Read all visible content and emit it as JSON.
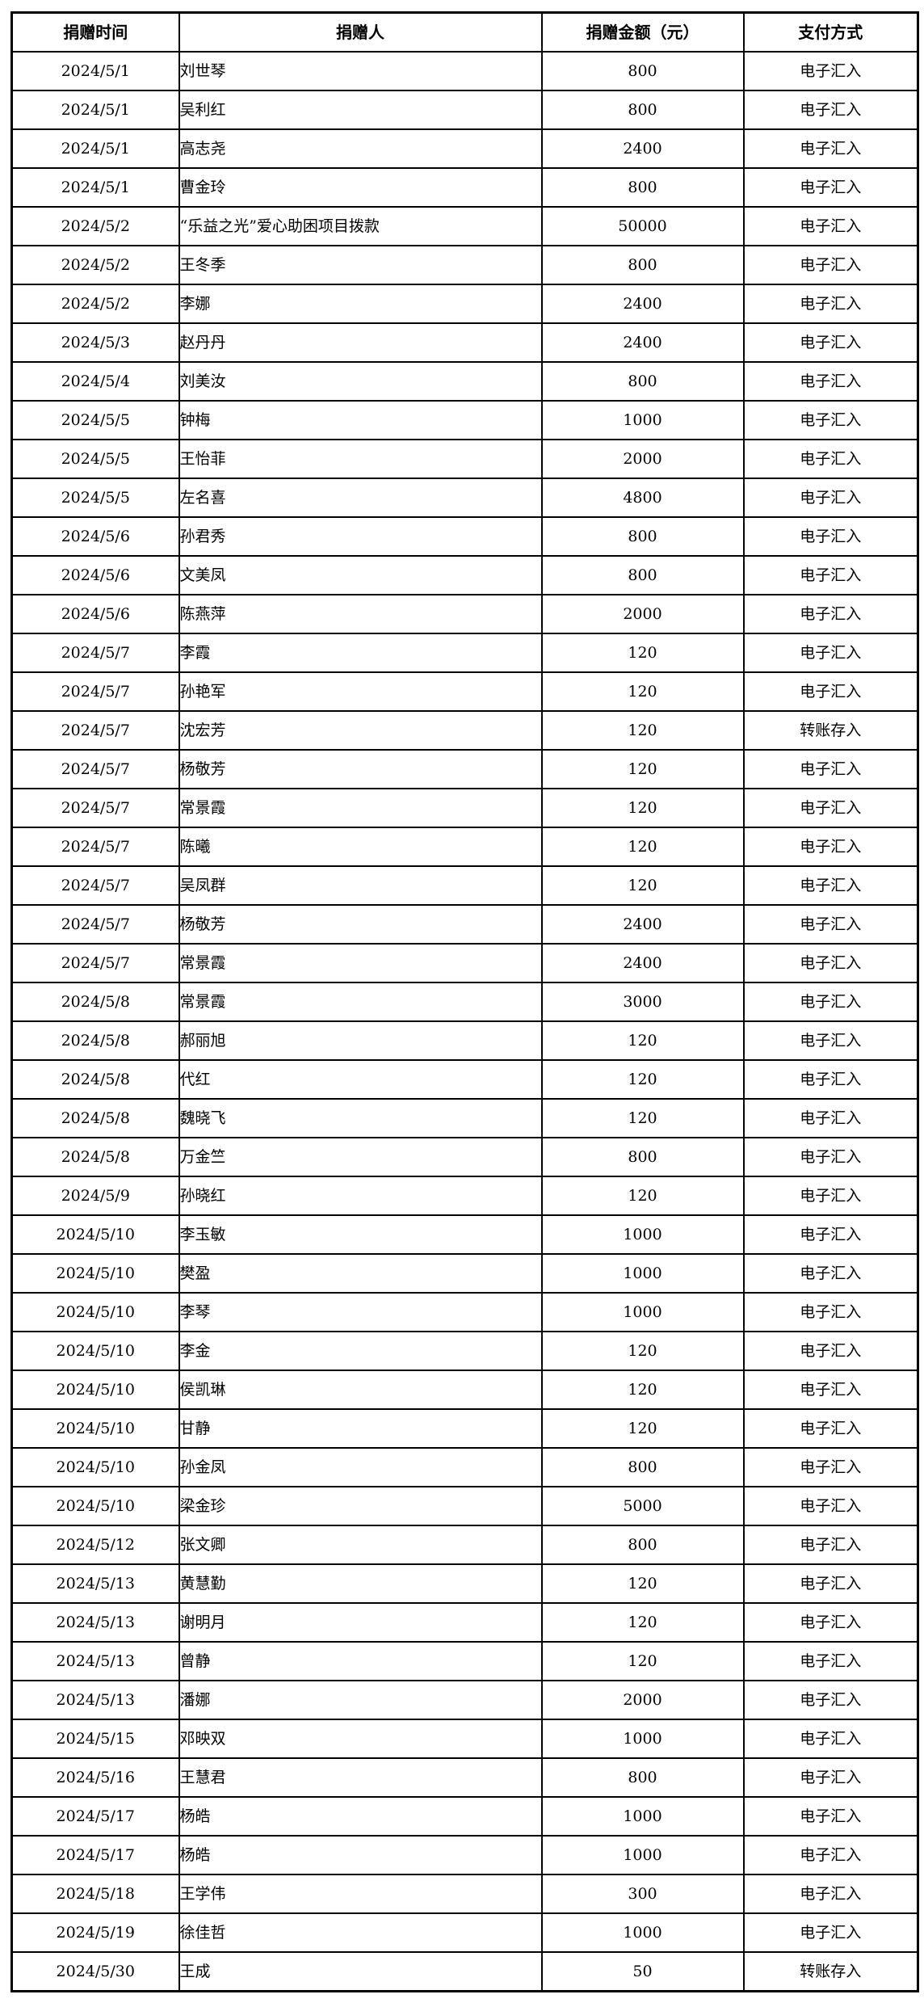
{
  "table": {
    "headers": [
      "捐赠时间",
      "捐赠人",
      "捐赠金额（元）",
      "支付方式"
    ],
    "rows": [
      [
        "2024/5/1",
        "刘世琴",
        "800",
        "电子汇入"
      ],
      [
        "2024/5/1",
        "吴利红",
        "800",
        "电子汇入"
      ],
      [
        "2024/5/1",
        "高志尧",
        "2400",
        "电子汇入"
      ],
      [
        "2024/5/1",
        "曹金玲",
        "800",
        "电子汇入"
      ],
      [
        "2024/5/2",
        "“乐益之光”爱心助困项目拨款",
        "50000",
        "电子汇入"
      ],
      [
        "2024/5/2",
        "王冬季",
        "800",
        "电子汇入"
      ],
      [
        "2024/5/2",
        "李娜",
        "2400",
        "电子汇入"
      ],
      [
        "2024/5/3",
        "赵丹丹",
        "2400",
        "电子汇入"
      ],
      [
        "2024/5/4",
        "刘美汝",
        "800",
        "电子汇入"
      ],
      [
        "2024/5/5",
        "钟梅",
        "1000",
        "电子汇入"
      ],
      [
        "2024/5/5",
        "王怡菲",
        "2000",
        "电子汇入"
      ],
      [
        "2024/5/5",
        "左名喜",
        "4800",
        "电子汇入"
      ],
      [
        "2024/5/6",
        "孙君秀",
        "800",
        "电子汇入"
      ],
      [
        "2024/5/6",
        "文美凤",
        "800",
        "电子汇入"
      ],
      [
        "2024/5/6",
        "陈燕萍",
        "2000",
        "电子汇入"
      ],
      [
        "2024/5/7",
        "李霞",
        "120",
        "电子汇入"
      ],
      [
        "2024/5/7",
        "孙艳军",
        "120",
        "电子汇入"
      ],
      [
        "2024/5/7",
        "沈宏芳",
        "120",
        "转账存入"
      ],
      [
        "2024/5/7",
        "杨敬芳",
        "120",
        "电子汇入"
      ],
      [
        "2024/5/7",
        "常景霞",
        "120",
        "电子汇入"
      ],
      [
        "2024/5/7",
        "陈曦",
        "120",
        "电子汇入"
      ],
      [
        "2024/5/7",
        "吴凤群",
        "120",
        "电子汇入"
      ],
      [
        "2024/5/7",
        "杨敬芳",
        "2400",
        "电子汇入"
      ],
      [
        "2024/5/7",
        "常景霞",
        "2400",
        "电子汇入"
      ],
      [
        "2024/5/8",
        "常景霞",
        "3000",
        "电子汇入"
      ],
      [
        "2024/5/8",
        "郝丽旭",
        "120",
        "电子汇入"
      ],
      [
        "2024/5/8",
        "代红",
        "120",
        "电子汇入"
      ],
      [
        "2024/5/8",
        "魏晓飞",
        "120",
        "电子汇入"
      ],
      [
        "2024/5/8",
        "万金竺",
        "800",
        "电子汇入"
      ],
      [
        "2024/5/9",
        "孙晓红",
        "120",
        "电子汇入"
      ],
      [
        "2024/5/10",
        "李玉敏",
        "1000",
        "电子汇入"
      ],
      [
        "2024/5/10",
        "樊盈",
        "1000",
        "电子汇入"
      ],
      [
        "2024/5/10",
        "李琴",
        "1000",
        "电子汇入"
      ],
      [
        "2024/5/10",
        "李金",
        "120",
        "电子汇入"
      ],
      [
        "2024/5/10",
        "侯凯琳",
        "120",
        "电子汇入"
      ],
      [
        "2024/5/10",
        "甘静",
        "120",
        "电子汇入"
      ],
      [
        "2024/5/10",
        "孙金凤",
        "800",
        "电子汇入"
      ],
      [
        "2024/5/10",
        "梁金珍",
        "5000",
        "电子汇入"
      ],
      [
        "2024/5/12",
        "张文卿",
        "800",
        "电子汇入"
      ],
      [
        "2024/5/13",
        "黄慧勤",
        "120",
        "电子汇入"
      ],
      [
        "2024/5/13",
        "谢明月",
        "120",
        "电子汇入"
      ],
      [
        "2024/5/13",
        "曾静",
        "120",
        "电子汇入"
      ],
      [
        "2024/5/13",
        "潘娜",
        "2000",
        "电子汇入"
      ],
      [
        "2024/5/15",
        "邓映双",
        "1000",
        "电子汇入"
      ],
      [
        "2024/5/16",
        "王慧君",
        "800",
        "电子汇入"
      ],
      [
        "2024/5/17",
        "杨皓",
        "1000",
        "电子汇入"
      ],
      [
        "2024/5/17",
        "杨皓",
        "1000",
        "电子汇入"
      ],
      [
        "2024/5/18",
        "王学伟",
        "300",
        "电子汇入"
      ],
      [
        "2024/5/19",
        "徐佳哲",
        "1000",
        "电子汇入"
      ],
      [
        "2024/5/30",
        "王成",
        "50",
        "转账存入"
      ]
    ]
  }
}
